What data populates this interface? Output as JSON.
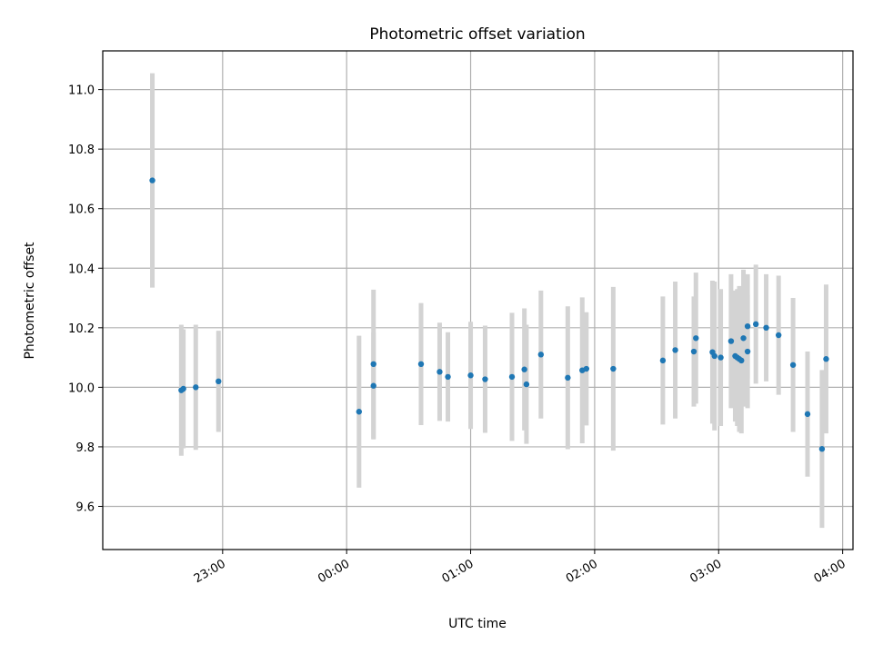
{
  "chart_data": {
    "type": "scatter",
    "title": "Photometric offset variation",
    "xlabel": "UTC time",
    "ylabel": "Photometric offset",
    "x_ticks": [
      "23:00",
      "00:00",
      "01:00",
      "02:00",
      "03:00",
      "04:00"
    ],
    "y_ticks": [
      "9.6",
      "9.8",
      "10.0",
      "10.2",
      "10.4",
      "10.6",
      "10.8",
      "11.0"
    ],
    "xlim": [
      "22:02",
      "04:05"
    ],
    "ylim": [
      9.455,
      11.13
    ],
    "grid": true,
    "error_bar_color": "#d3d3d3",
    "marker_color": "#1f77b4",
    "series": [
      {
        "x": [
          "22:26",
          "22:40",
          "22:41",
          "22:47",
          "22:58",
          "00:06",
          "00:13",
          "00:13",
          "00:36",
          "00:45",
          "00:49",
          "01:00",
          "01:07",
          "01:20",
          "01:26",
          "01:27",
          "01:34",
          "01:47",
          "01:54",
          "01:56",
          "02:09",
          "02:33",
          "02:39",
          "02:48",
          "02:49",
          "02:57",
          "02:58",
          "03:01",
          "03:06",
          "03:08",
          "03:09",
          "03:10",
          "03:11",
          "03:12",
          "03:14",
          "03:14",
          "03:18",
          "03:23",
          "03:29",
          "03:36",
          "03:43",
          "03:50",
          "03:52"
        ],
        "y": [
          10.695,
          9.99,
          9.995,
          10.0,
          10.02,
          9.918,
          10.005,
          10.078,
          10.078,
          10.052,
          10.035,
          10.04,
          10.027,
          10.035,
          10.06,
          10.01,
          10.11,
          10.032,
          10.057,
          10.062,
          10.062,
          10.09,
          10.125,
          10.12,
          10.165,
          10.118,
          10.105,
          10.1,
          10.155,
          10.105,
          10.1,
          10.095,
          10.09,
          10.165,
          10.12,
          10.205,
          10.212,
          10.2,
          10.175,
          10.075,
          9.91,
          9.793,
          10.095
        ],
        "yerr": [
          0.36,
          0.22,
          0.2,
          0.21,
          0.17,
          0.255,
          0.18,
          0.25,
          0.205,
          0.165,
          0.15,
          0.18,
          0.18,
          0.215,
          0.205,
          0.2,
          0.215,
          0.24,
          0.245,
          0.19,
          0.275,
          0.215,
          0.23,
          0.185,
          0.22,
          0.24,
          0.25,
          0.23,
          0.225,
          0.22,
          0.23,
          0.245,
          0.245,
          0.23,
          0.19,
          0.175,
          0.2,
          0.18,
          0.2,
          0.225,
          0.21,
          0.265,
          0.25
        ]
      }
    ]
  }
}
